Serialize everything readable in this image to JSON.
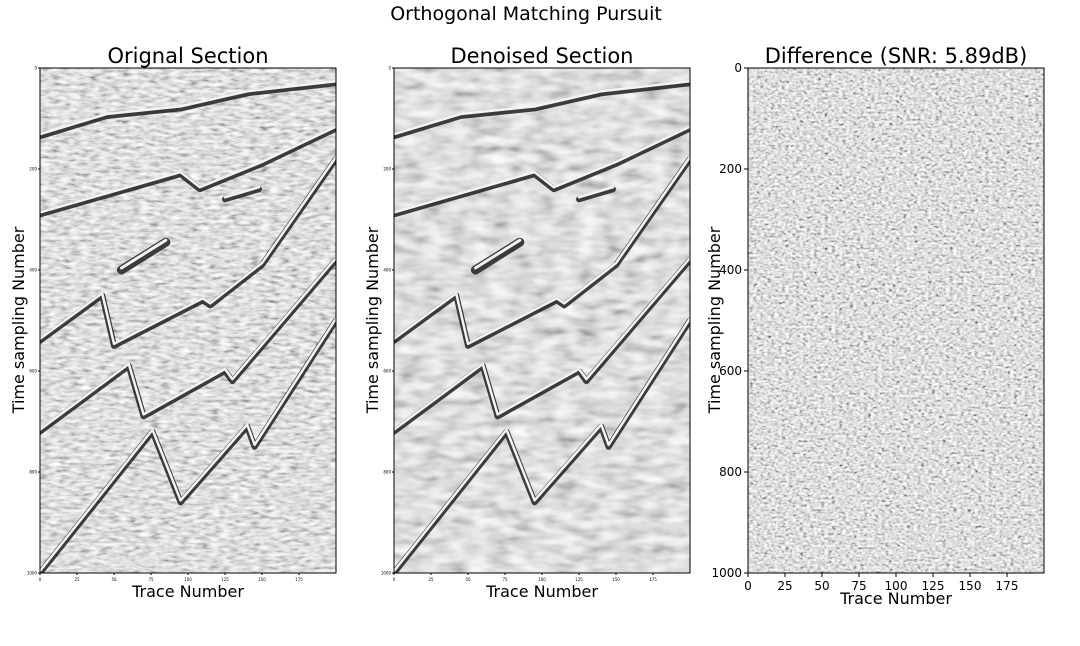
{
  "figure_title": "Orthogonal Matching Pursuit",
  "chart_data": [
    {
      "type": "heatmap",
      "title": "Orignal Section",
      "xlabel": "Trace Number",
      "ylabel": "Time sampling Number",
      "x_ticks": [
        "0",
        "25",
        "50",
        "75",
        "100",
        "125",
        "150",
        "175"
      ],
      "y_ticks": [
        "0",
        "200",
        "400",
        "600",
        "800",
        "1000"
      ],
      "xlim": [
        0,
        200
      ],
      "ylim": [
        1000,
        0
      ],
      "colormap": "gray",
      "events": [
        {
          "name": "shallow-reflector",
          "x": [
            0,
            45,
            95,
            140,
            200
          ],
          "y": [
            135,
            95,
            80,
            50,
            30
          ]
        },
        {
          "name": "faulted-reflector",
          "x": [
            0,
            95,
            108,
            150,
            200
          ],
          "y": [
            290,
            210,
            240,
            190,
            120
          ]
        },
        {
          "name": "short-event",
          "x": [
            125,
            148
          ],
          "y": [
            260,
            240
          ]
        },
        {
          "name": "diffraction-lens",
          "x": [
            55,
            85
          ],
          "y": [
            400,
            345
          ]
        },
        {
          "name": "reflector-3",
          "x": [
            0,
            42,
            50,
            110,
            115,
            150,
            200
          ],
          "y": [
            540,
            450,
            550,
            460,
            470,
            390,
            180
          ]
        },
        {
          "name": "reflector-4",
          "x": [
            0,
            60,
            70,
            125,
            130,
            200
          ],
          "y": [
            720,
            590,
            690,
            600,
            620,
            380
          ]
        },
        {
          "name": "reflector-5",
          "x": [
            0,
            76,
            95,
            140,
            145,
            200
          ],
          "y": [
            1000,
            720,
            860,
            710,
            750,
            500
          ]
        }
      ]
    },
    {
      "type": "heatmap",
      "title": "Denoised Section",
      "xlabel": "Trace Number",
      "ylabel": "Time sampling Number",
      "x_ticks": [
        "0",
        "25",
        "50",
        "75",
        "100",
        "125",
        "150",
        "175"
      ],
      "y_ticks": [
        "0",
        "200",
        "400",
        "600",
        "800",
        "1000"
      ],
      "xlim": [
        0,
        200
      ],
      "ylim": [
        1000,
        0
      ],
      "colormap": "gray",
      "events": [
        {
          "name": "shallow-reflector",
          "x": [
            0,
            45,
            95,
            140,
            200
          ],
          "y": [
            135,
            95,
            80,
            50,
            30
          ]
        },
        {
          "name": "faulted-reflector",
          "x": [
            0,
            95,
            108,
            150,
            200
          ],
          "y": [
            290,
            210,
            240,
            190,
            120
          ]
        },
        {
          "name": "short-event",
          "x": [
            125,
            148
          ],
          "y": [
            260,
            240
          ]
        },
        {
          "name": "diffraction-lens",
          "x": [
            55,
            85
          ],
          "y": [
            400,
            345
          ]
        },
        {
          "name": "reflector-3",
          "x": [
            0,
            42,
            50,
            110,
            115,
            150,
            200
          ],
          "y": [
            540,
            450,
            550,
            460,
            470,
            390,
            180
          ]
        },
        {
          "name": "reflector-4",
          "x": [
            0,
            60,
            70,
            125,
            130,
            200
          ],
          "y": [
            720,
            590,
            690,
            600,
            620,
            380
          ]
        },
        {
          "name": "reflector-5",
          "x": [
            0,
            76,
            95,
            140,
            145,
            200
          ],
          "y": [
            1000,
            720,
            860,
            710,
            750,
            500
          ]
        }
      ]
    },
    {
      "type": "heatmap",
      "title": "Difference (SNR: 5.89dB)",
      "xlabel": "Trace Number",
      "ylabel": "Time sampling Number",
      "x_ticks": [
        "0",
        "25",
        "50",
        "75",
        "100",
        "125",
        "150",
        "175"
      ],
      "y_ticks": [
        "0",
        "200",
        "400",
        "600",
        "800",
        "1000"
      ],
      "xlim": [
        0,
        200
      ],
      "ylim": [
        1000,
        0
      ],
      "colormap": "gray",
      "snr_db": 5.89,
      "events": []
    }
  ]
}
